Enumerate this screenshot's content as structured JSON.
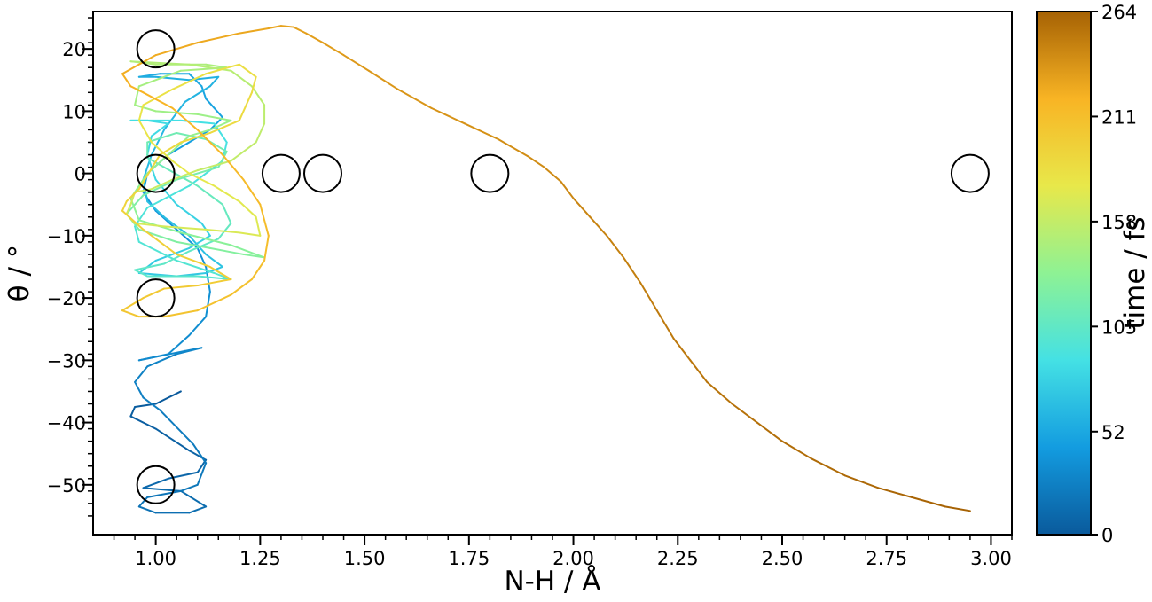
{
  "chart_data": {
    "type": "line",
    "xlabel": "N-H / Å",
    "ylabel": "θ / °",
    "xlim": [
      0.85,
      3.05
    ],
    "ylim": [
      -58,
      26
    ],
    "xticks": [
      1.0,
      1.25,
      1.5,
      1.75,
      2.0,
      2.25,
      2.5,
      2.75,
      3.0
    ],
    "xtick_labels": [
      "1.00",
      "1.25",
      "1.50",
      "1.75",
      "2.00",
      "2.25",
      "2.50",
      "2.75",
      "3.00"
    ],
    "yticks": [
      20,
      10,
      0,
      -10,
      -20,
      -30,
      -40,
      -50
    ],
    "ytick_labels": [
      "20",
      "10",
      "0",
      "−10",
      "−20",
      "−30",
      "−40",
      "−50"
    ],
    "colorbar": {
      "label": "time / fs",
      "range": [
        0,
        264
      ],
      "ticks": [
        0,
        52,
        105,
        158,
        211,
        264
      ],
      "tick_labels": [
        "0",
        "52",
        "105",
        "158",
        "211",
        "264"
      ],
      "colors": [
        "#0a5a9c",
        "#139ce0",
        "#44e1e4",
        "#8ef294",
        "#e8e84a",
        "#f8b424",
        "#a66204"
      ]
    },
    "trajectory": {
      "t_max": 264,
      "points": [
        [
          1.06,
          -35
        ],
        [
          1.0,
          -37
        ],
        [
          0.95,
          -37.5
        ],
        [
          0.94,
          -39
        ],
        [
          1.0,
          -41
        ],
        [
          1.08,
          -44.5
        ],
        [
          1.12,
          -46
        ],
        [
          1.1,
          -48
        ],
        [
          1.03,
          -49
        ],
        [
          0.97,
          -50.5
        ],
        [
          1.06,
          -51
        ],
        [
          1.12,
          -53.5
        ],
        [
          1.08,
          -54.5
        ],
        [
          1.0,
          -54.5
        ],
        [
          0.96,
          -53.5
        ],
        [
          0.98,
          -52
        ],
        [
          1.06,
          -51
        ],
        [
          1.1,
          -50
        ],
        [
          1.12,
          -46.5
        ],
        [
          1.09,
          -43.5
        ],
        [
          1.01,
          -38
        ],
        [
          0.97,
          -36
        ],
        [
          0.95,
          -33.5
        ],
        [
          0.98,
          -31
        ],
        [
          1.05,
          -29
        ],
        [
          1.11,
          -28
        ],
        [
          1.07,
          -28.5
        ],
        [
          0.96,
          -30
        ],
        [
          1.03,
          -29
        ],
        [
          1.08,
          -26
        ],
        [
          1.12,
          -23
        ],
        [
          1.13,
          -19
        ],
        [
          1.12,
          -15
        ],
        [
          1.1,
          -12
        ],
        [
          1.05,
          -9
        ],
        [
          1.0,
          -6
        ],
        [
          0.97,
          -3
        ],
        [
          0.98,
          0
        ],
        [
          1.03,
          3
        ],
        [
          1.08,
          5
        ],
        [
          1.13,
          7
        ],
        [
          1.16,
          9
        ],
        [
          1.12,
          12
        ],
        [
          1.11,
          14
        ],
        [
          1.08,
          16
        ],
        [
          1.01,
          16
        ],
        [
          0.96,
          15.5
        ],
        [
          1.0,
          15.5
        ],
        [
          1.08,
          15
        ],
        [
          1.15,
          15.5
        ],
        [
          1.13,
          14
        ],
        [
          1.07,
          11.5
        ],
        [
          1.02,
          7
        ],
        [
          0.99,
          3
        ],
        [
          0.97,
          -1
        ],
        [
          0.98,
          -4.5
        ],
        [
          1.02,
          -7
        ],
        [
          1.08,
          -10
        ],
        [
          1.12,
          -13
        ],
        [
          1.16,
          -15
        ],
        [
          1.12,
          -16
        ],
        [
          1.05,
          -16.5
        ],
        [
          0.96,
          -16
        ],
        [
          1.0,
          -14
        ],
        [
          1.08,
          -12
        ],
        [
          1.13,
          -10
        ],
        [
          1.11,
          -8
        ],
        [
          1.05,
          -5
        ],
        [
          1.0,
          -1
        ],
        [
          0.98,
          3
        ],
        [
          0.99,
          6
        ],
        [
          1.03,
          8
        ],
        [
          0.98,
          8.5
        ],
        [
          0.94,
          8.5
        ],
        [
          1.06,
          8.5
        ],
        [
          1.14,
          8
        ],
        [
          1.17,
          5
        ],
        [
          1.16,
          2
        ],
        [
          1.08,
          -2
        ],
        [
          0.98,
          -5.5
        ],
        [
          0.95,
          -8.5
        ],
        [
          0.96,
          -11
        ],
        [
          1.05,
          -14
        ],
        [
          1.14,
          -16
        ],
        [
          1.18,
          -17
        ],
        [
          1.1,
          -16.5
        ],
        [
          0.98,
          -16.5
        ],
        [
          0.95,
          -15.5
        ],
        [
          1.02,
          -14.5
        ],
        [
          1.08,
          -12.5
        ],
        [
          1.15,
          -10.5
        ],
        [
          1.18,
          -8
        ],
        [
          1.16,
          -5
        ],
        [
          1.1,
          -2
        ],
        [
          1.02,
          1
        ],
        [
          0.98,
          2.5
        ],
        [
          0.98,
          5
        ],
        [
          1.05,
          6.5
        ],
        [
          1.12,
          5.5
        ],
        [
          1.17,
          3.5
        ],
        [
          1.15,
          1
        ],
        [
          1.05,
          -1
        ],
        [
          0.97,
          -3.5
        ],
        [
          0.93,
          -6.5
        ],
        [
          0.96,
          -9
        ],
        [
          1.05,
          -11
        ],
        [
          1.13,
          -12
        ],
        [
          1.21,
          -13
        ],
        [
          1.26,
          -13.5
        ],
        [
          1.18,
          -11.5
        ],
        [
          1.06,
          -9.5
        ],
        [
          0.96,
          -7.5
        ],
        [
          0.94,
          -4
        ],
        [
          0.98,
          0
        ],
        [
          1.03,
          3
        ],
        [
          1.08,
          6
        ],
        [
          1.13,
          7
        ],
        [
          1.18,
          8.5
        ],
        [
          1.1,
          9.5
        ],
        [
          1.0,
          10
        ],
        [
          0.95,
          11
        ],
        [
          0.96,
          14
        ],
        [
          1.06,
          16.5
        ],
        [
          1.17,
          17
        ],
        [
          1.12,
          17.5
        ],
        [
          1.0,
          17.5
        ],
        [
          0.94,
          18
        ],
        [
          1.08,
          17.5
        ],
        [
          1.18,
          16.5
        ],
        [
          1.23,
          14
        ],
        [
          1.26,
          11
        ],
        [
          1.26,
          8
        ],
        [
          1.24,
          5
        ],
        [
          1.18,
          2
        ],
        [
          1.1,
          0.5
        ],
        [
          1.04,
          -1
        ],
        [
          0.99,
          -2.5
        ],
        [
          0.95,
          -3
        ],
        [
          0.94,
          -5
        ],
        [
          0.93,
          -6.5
        ],
        [
          0.95,
          -8
        ],
        [
          1.02,
          -8.5
        ],
        [
          1.12,
          -9
        ],
        [
          1.2,
          -9.5
        ],
        [
          1.25,
          -10
        ],
        [
          1.24,
          -7
        ],
        [
          1.2,
          -4.5
        ],
        [
          1.14,
          -2
        ],
        [
          1.08,
          0
        ],
        [
          1.04,
          2
        ],
        [
          0.99,
          5
        ],
        [
          0.96,
          8.5
        ],
        [
          0.97,
          11
        ],
        [
          1.04,
          13.5
        ],
        [
          1.12,
          16
        ],
        [
          1.2,
          17.5
        ],
        [
          1.24,
          15.5
        ],
        [
          1.23,
          13
        ],
        [
          1.2,
          8.5
        ],
        [
          1.13,
          6.5
        ],
        [
          1.06,
          5
        ],
        [
          1.01,
          3
        ],
        [
          0.96,
          -2.5
        ],
        [
          0.93,
          -4.5
        ],
        [
          0.92,
          -6
        ],
        [
          0.97,
          -9
        ],
        [
          1.05,
          -13
        ],
        [
          1.13,
          -15
        ],
        [
          1.18,
          -17
        ],
        [
          1.1,
          -18
        ],
        [
          1.02,
          -18.5
        ],
        [
          0.97,
          -20
        ],
        [
          0.92,
          -22
        ],
        [
          0.96,
          -23
        ],
        [
          1.02,
          -23
        ],
        [
          1.1,
          -22
        ],
        [
          1.18,
          -19.5
        ],
        [
          1.23,
          -17
        ],
        [
          1.26,
          -14
        ],
        [
          1.27,
          -10
        ],
        [
          1.25,
          -5
        ],
        [
          1.21,
          -1
        ],
        [
          1.16,
          3
        ],
        [
          1.1,
          7
        ],
        [
          1.04,
          10.5
        ],
        [
          0.97,
          13
        ],
        [
          0.94,
          14
        ],
        [
          0.93,
          15
        ],
        [
          0.92,
          16
        ],
        [
          1.0,
          19
        ],
        [
          1.1,
          21
        ],
        [
          1.2,
          22.5
        ],
        [
          1.27,
          23.3
        ],
        [
          1.3,
          23.7
        ],
        [
          1.33,
          23.5
        ],
        [
          1.36,
          22.5
        ],
        [
          1.4,
          21
        ],
        [
          1.45,
          19
        ],
        [
          1.51,
          16.5
        ],
        [
          1.58,
          13.5
        ],
        [
          1.66,
          10.5
        ],
        [
          1.74,
          8
        ],
        [
          1.82,
          5.5
        ],
        [
          1.89,
          2.8
        ],
        [
          1.93,
          1
        ],
        [
          1.97,
          -1.3
        ],
        [
          2.0,
          -4
        ],
        [
          2.04,
          -7
        ],
        [
          2.08,
          -10
        ],
        [
          2.12,
          -13.5
        ],
        [
          2.16,
          -17.5
        ],
        [
          2.2,
          -22
        ],
        [
          2.24,
          -26.5
        ],
        [
          2.28,
          -30
        ],
        [
          2.32,
          -33.5
        ],
        [
          2.38,
          -37
        ],
        [
          2.44,
          -40
        ],
        [
          2.5,
          -43
        ],
        [
          2.57,
          -45.8
        ],
        [
          2.65,
          -48.5
        ],
        [
          2.73,
          -50.5
        ],
        [
          2.81,
          -52
        ],
        [
          2.89,
          -53.5
        ],
        [
          2.95,
          -54.2
        ]
      ]
    },
    "markers": [
      [
        1.0,
        20
      ],
      [
        1.0,
        0
      ],
      [
        1.0,
        -20
      ],
      [
        1.0,
        -50
      ],
      [
        1.3,
        0
      ],
      [
        1.4,
        0
      ],
      [
        1.8,
        0
      ],
      [
        2.95,
        0
      ]
    ]
  }
}
